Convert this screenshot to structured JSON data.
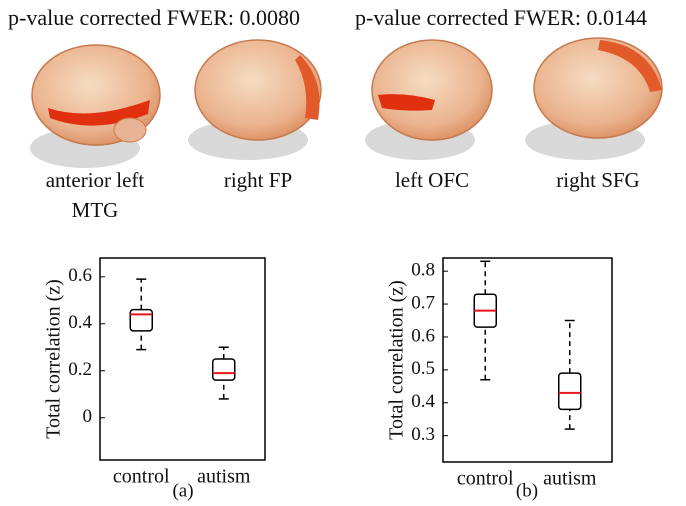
{
  "chart_data": [
    {
      "type": "box",
      "title": "p-value corrected FWER: 0.0080",
      "region_labels": [
        [
          "anterior left",
          "MTG"
        ],
        [
          "right FP"
        ]
      ],
      "ylabel": "Total correlation (z)",
      "caption": "(a)",
      "categories": [
        "control",
        "autism"
      ],
      "boxes": [
        {
          "whislo": 0.29,
          "q1": 0.37,
          "med": 0.44,
          "q3": 0.46,
          "whishi": 0.59
        },
        {
          "whislo": 0.08,
          "q1": 0.16,
          "med": 0.19,
          "q3": 0.25,
          "whishi": 0.3
        }
      ],
      "box_color": "#000000",
      "median_color": "#e8141c",
      "ylim": [
        -0.18,
        0.68
      ],
      "yticks": [
        0,
        0.2,
        0.4,
        0.6
      ]
    },
    {
      "type": "box",
      "title": "p-value corrected FWER: 0.0144",
      "region_labels": [
        [
          "left OFC"
        ],
        [
          "right SFG"
        ]
      ],
      "ylabel": "Total correlation (z)",
      "caption": "(b)",
      "categories": [
        "control",
        "autism"
      ],
      "boxes": [
        {
          "whislo": 0.47,
          "q1": 0.63,
          "med": 0.68,
          "q3": 0.73,
          "whishi": 0.83
        },
        {
          "whislo": 0.32,
          "q1": 0.38,
          "med": 0.43,
          "q3": 0.49,
          "whishi": 0.65
        }
      ],
      "box_color": "#000000",
      "median_color": "#e8141c",
      "ylim": [
        0.22,
        0.84
      ],
      "yticks": [
        0.3,
        0.4,
        0.5,
        0.6,
        0.7,
        0.8
      ]
    }
  ]
}
